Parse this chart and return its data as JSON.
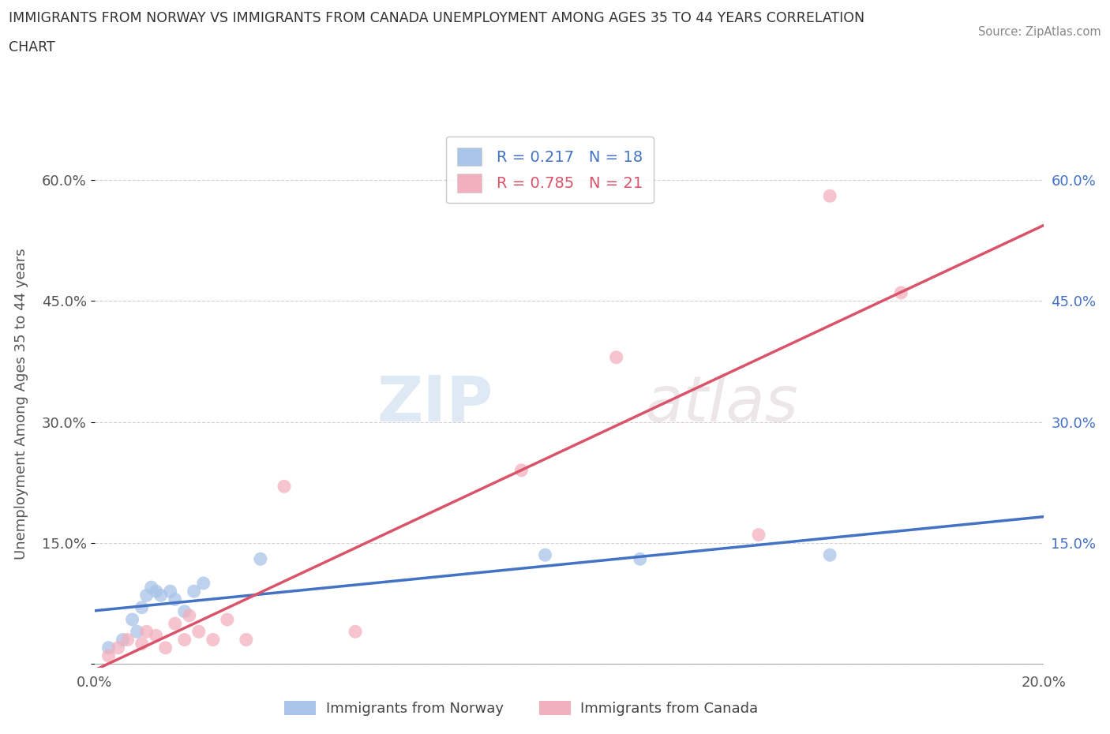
{
  "title_line1": "IMMIGRANTS FROM NORWAY VS IMMIGRANTS FROM CANADA UNEMPLOYMENT AMONG AGES 35 TO 44 YEARS CORRELATION",
  "title_line2": "CHART",
  "source": "Source: ZipAtlas.com",
  "ylabel": "Unemployment Among Ages 35 to 44 years",
  "norway_R": 0.217,
  "norway_N": 18,
  "canada_R": 0.785,
  "canada_N": 21,
  "norway_color": "#a8c4e8",
  "canada_color": "#f2b0be",
  "norway_line_color": "#4472c4",
  "canada_line_color": "#d9546a",
  "xlim": [
    0.0,
    0.2
  ],
  "ylim": [
    -0.005,
    0.65
  ],
  "x_ticks": [
    0.0,
    0.04,
    0.08,
    0.12,
    0.16,
    0.2
  ],
  "y_ticks": [
    0.0,
    0.15,
    0.3,
    0.45,
    0.6
  ],
  "norway_x": [
    0.003,
    0.006,
    0.008,
    0.009,
    0.01,
    0.011,
    0.012,
    0.013,
    0.014,
    0.016,
    0.017,
    0.019,
    0.021,
    0.023,
    0.035,
    0.095,
    0.115,
    0.155
  ],
  "norway_y": [
    0.02,
    0.03,
    0.055,
    0.04,
    0.07,
    0.085,
    0.095,
    0.09,
    0.085,
    0.09,
    0.08,
    0.065,
    0.09,
    0.1,
    0.13,
    0.135,
    0.13,
    0.135
  ],
  "canada_x": [
    0.003,
    0.005,
    0.007,
    0.01,
    0.011,
    0.013,
    0.015,
    0.017,
    0.019,
    0.02,
    0.022,
    0.025,
    0.028,
    0.032,
    0.04,
    0.055,
    0.09,
    0.11,
    0.14,
    0.155,
    0.17
  ],
  "canada_y": [
    0.01,
    0.02,
    0.03,
    0.025,
    0.04,
    0.035,
    0.02,
    0.05,
    0.03,
    0.06,
    0.04,
    0.03,
    0.055,
    0.03,
    0.22,
    0.04,
    0.24,
    0.38,
    0.16,
    0.58,
    0.46
  ],
  "watermark_zip": "ZIP",
  "watermark_atlas": "atlas",
  "background_color": "#ffffff",
  "grid_color": "#cccccc",
  "norway_bottom_label": "Immigrants from Norway",
  "canada_bottom_label": "Immigrants from Canada"
}
